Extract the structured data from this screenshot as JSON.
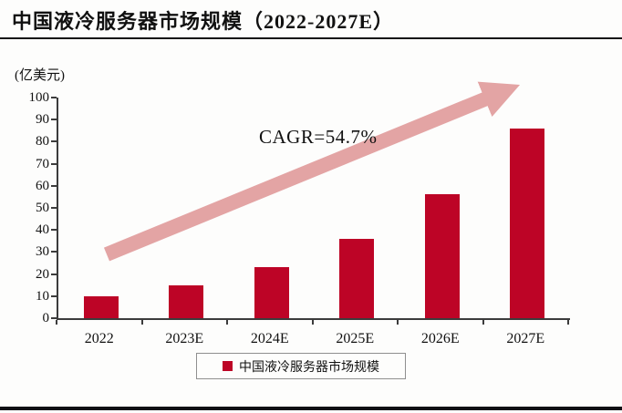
{
  "header": {
    "title": "中国液冷服务器市场规模（2022-2027E）"
  },
  "chart_data": {
    "type": "bar",
    "title": "中国液冷服务器市场规模（2022-2027E）",
    "unit_label": "(亿美元)",
    "categories": [
      "2022",
      "2023E",
      "2024E",
      "2025E",
      "2026E",
      "2027E"
    ],
    "values": [
      10,
      15,
      23,
      36,
      56,
      86
    ],
    "series_name": "中国液冷服务器市场规模",
    "ylim": [
      0,
      100
    ],
    "ytick_step": 10,
    "grid": false,
    "legend_position": "bottom",
    "annotation": "CAGR=54.7%",
    "bar_color": "#bd0426",
    "arrow_color": "#e3a4a4",
    "axis_color": "#3c3c3c"
  },
  "annotation": {
    "cagr_label": "CAGR=54.7%"
  },
  "legend": {
    "label": "中国液冷服务器市场规模",
    "marker_color": "#bd0426"
  }
}
